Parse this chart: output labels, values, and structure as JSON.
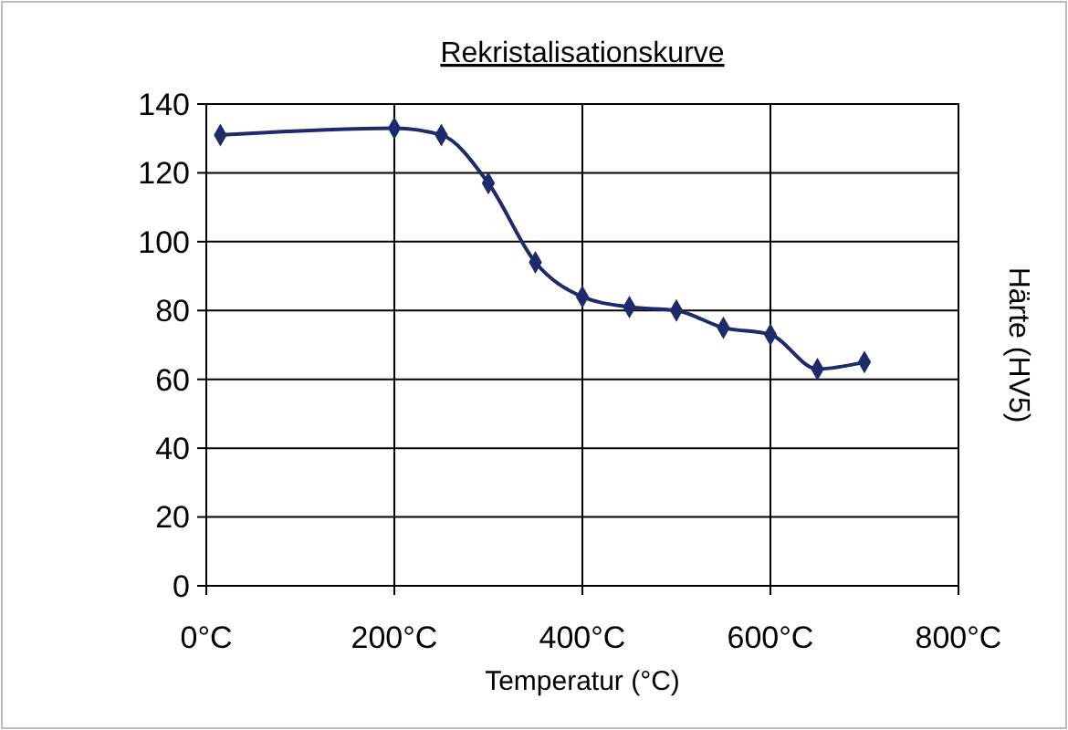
{
  "chart_data": {
    "type": "line",
    "title": "Rekristalisationskurve",
    "xlabel": "Temperatur (°C)",
    "ylabel": "Härte (HV5)",
    "x": [
      15,
      200,
      250,
      300,
      350,
      400,
      450,
      500,
      550,
      600,
      650,
      700
    ],
    "series": [
      {
        "color": "#1f2a6b",
        "values": [
          131,
          133,
          131,
          117,
          94,
          84,
          81,
          80,
          75,
          73,
          63,
          65
        ]
      }
    ],
    "xlim": [
      0,
      800
    ],
    "xticks": [
      {
        "value": 0,
        "label": "0°C"
      },
      {
        "value": 200,
        "label": "200°C"
      },
      {
        "value": 400,
        "label": "400°C"
      },
      {
        "value": 600,
        "label": "600°C"
      },
      {
        "value": 800,
        "label": "800°C"
      }
    ],
    "ylim": [
      0,
      140
    ],
    "yticks": [
      0,
      20,
      40,
      60,
      80,
      100,
      120,
      140
    ],
    "grid": true,
    "marker": "diamond",
    "line_style": "solid"
  }
}
